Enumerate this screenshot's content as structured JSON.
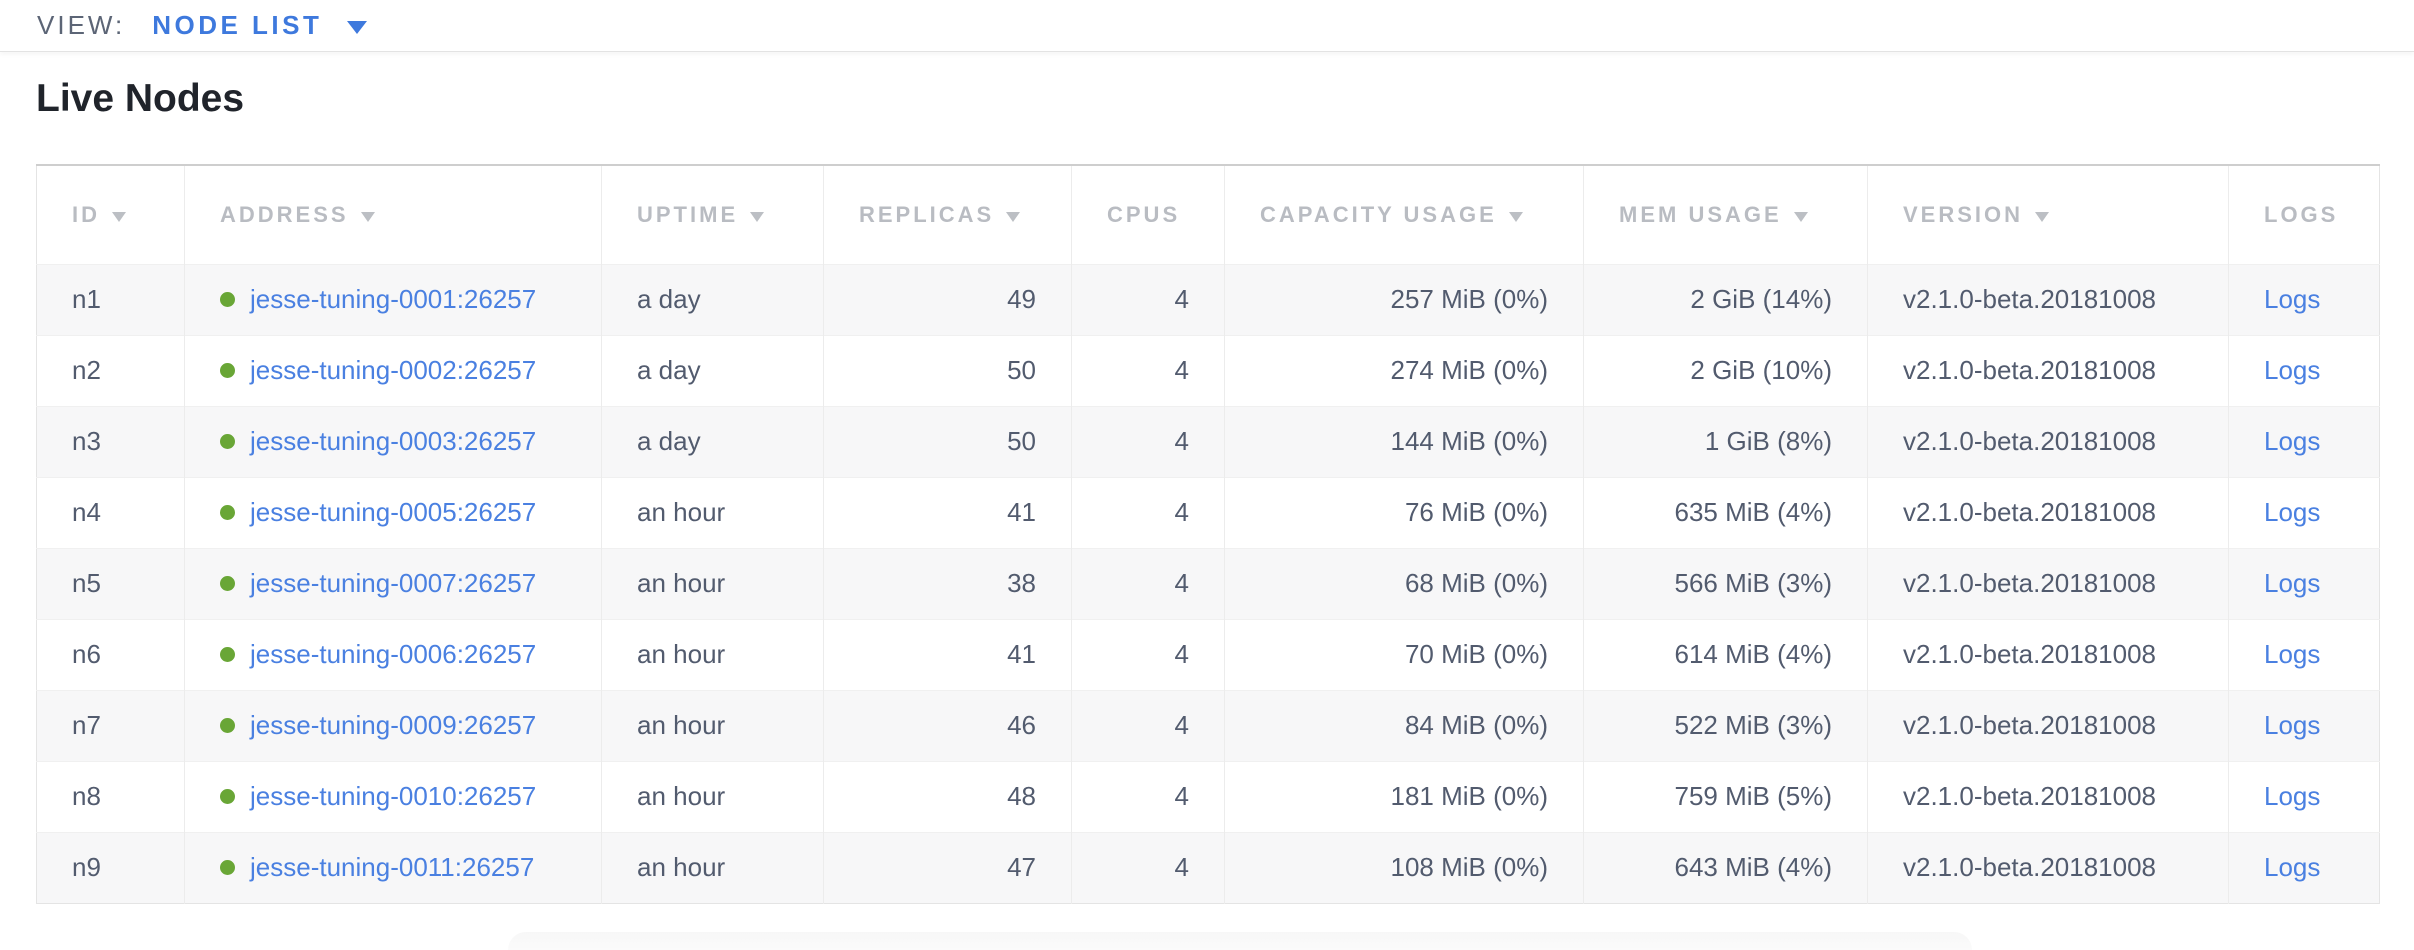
{
  "topbar": {
    "view_label": "VIEW:",
    "view_value": "NODE LIST"
  },
  "section": {
    "title": "Live Nodes"
  },
  "table": {
    "columns": [
      {
        "key": "id",
        "label": "ID",
        "has_sort_arrow": true
      },
      {
        "key": "address",
        "label": "ADDRESS",
        "has_sort_arrow": true
      },
      {
        "key": "uptime",
        "label": "UPTIME",
        "has_sort_arrow": true
      },
      {
        "key": "replicas",
        "label": "REPLICAS",
        "has_sort_arrow": true
      },
      {
        "key": "cpus",
        "label": "CPUS",
        "has_sort_arrow": false
      },
      {
        "key": "capacity_usage",
        "label": "CAPACITY USAGE",
        "has_sort_arrow": true
      },
      {
        "key": "mem_usage",
        "label": "MEM USAGE",
        "has_sort_arrow": true
      },
      {
        "key": "version",
        "label": "VERSION",
        "has_sort_arrow": true
      },
      {
        "key": "logs",
        "label": "LOGS",
        "has_sort_arrow": false
      }
    ],
    "rows": [
      {
        "id": "n1",
        "status": "live",
        "address": "jesse-tuning-0001:26257",
        "uptime": "a day",
        "replicas": "49",
        "cpus": "4",
        "capacity_usage": "257 MiB (0%)",
        "mem_usage": "2 GiB (14%)",
        "version": "v2.1.0-beta.20181008",
        "logs": "Logs"
      },
      {
        "id": "n2",
        "status": "live",
        "address": "jesse-tuning-0002:26257",
        "uptime": "a day",
        "replicas": "50",
        "cpus": "4",
        "capacity_usage": "274 MiB (0%)",
        "mem_usage": "2 GiB (10%)",
        "version": "v2.1.0-beta.20181008",
        "logs": "Logs"
      },
      {
        "id": "n3",
        "status": "live",
        "address": "jesse-tuning-0003:26257",
        "uptime": "a day",
        "replicas": "50",
        "cpus": "4",
        "capacity_usage": "144 MiB (0%)",
        "mem_usage": "1 GiB (8%)",
        "version": "v2.1.0-beta.20181008",
        "logs": "Logs"
      },
      {
        "id": "n4",
        "status": "live",
        "address": "jesse-tuning-0005:26257",
        "uptime": "an hour",
        "replicas": "41",
        "cpus": "4",
        "capacity_usage": "76 MiB (0%)",
        "mem_usage": "635 MiB (4%)",
        "version": "v2.1.0-beta.20181008",
        "logs": "Logs"
      },
      {
        "id": "n5",
        "status": "live",
        "address": "jesse-tuning-0007:26257",
        "uptime": "an hour",
        "replicas": "38",
        "cpus": "4",
        "capacity_usage": "68 MiB (0%)",
        "mem_usage": "566 MiB (3%)",
        "version": "v2.1.0-beta.20181008",
        "logs": "Logs"
      },
      {
        "id": "n6",
        "status": "live",
        "address": "jesse-tuning-0006:26257",
        "uptime": "an hour",
        "replicas": "41",
        "cpus": "4",
        "capacity_usage": "70 MiB (0%)",
        "mem_usage": "614 MiB (4%)",
        "version": "v2.1.0-beta.20181008",
        "logs": "Logs"
      },
      {
        "id": "n7",
        "status": "live",
        "address": "jesse-tuning-0009:26257",
        "uptime": "an hour",
        "replicas": "46",
        "cpus": "4",
        "capacity_usage": "84 MiB (0%)",
        "mem_usage": "522 MiB (3%)",
        "version": "v2.1.0-beta.20181008",
        "logs": "Logs"
      },
      {
        "id": "n8",
        "status": "live",
        "address": "jesse-tuning-0010:26257",
        "uptime": "an hour",
        "replicas": "48",
        "cpus": "4",
        "capacity_usage": "181 MiB (0%)",
        "mem_usage": "759 MiB (5%)",
        "version": "v2.1.0-beta.20181008",
        "logs": "Logs"
      },
      {
        "id": "n9",
        "status": "live",
        "address": "jesse-tuning-0011:26257",
        "uptime": "an hour",
        "replicas": "47",
        "cpus": "4",
        "capacity_usage": "108 MiB (0%)",
        "mem_usage": "643 MiB (4%)",
        "version": "v2.1.0-beta.20181008",
        "logs": "Logs"
      }
    ]
  },
  "colors": {
    "accent_blue": "#3e79dd",
    "link_blue": "#4a80e1",
    "live_dot_green": "#69a636",
    "header_gray": "#b9bcc2",
    "text_slate": "#525b6e"
  }
}
